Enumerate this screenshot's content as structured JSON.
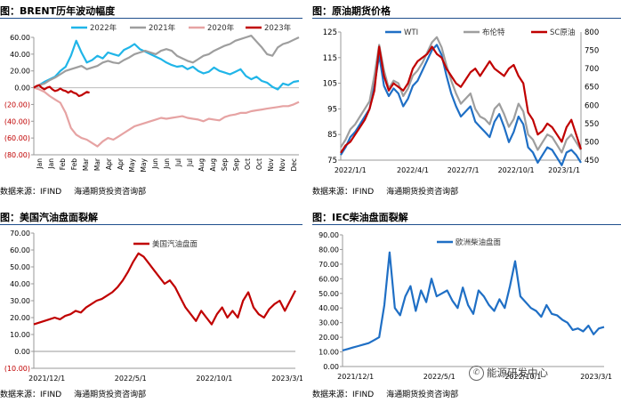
{
  "source_text": "数据来源：IFIND",
  "source_org": "海通期货投资咨询部",
  "watermark": {
    "text": "能源研发中心",
    "icon": "wechat-icon"
  },
  "chart_data": [
    {
      "id": "c1",
      "type": "line",
      "title": "图：BRENT历年波动幅度",
      "categories": [
        "Jan",
        "Jan",
        "Feb",
        "Feb",
        "Mar",
        "Mar",
        "Apr",
        "Apr",
        "May",
        "May",
        "Jun",
        "Jun",
        "Jul",
        "Jul",
        "Aug",
        "Aug",
        "Sep",
        "Sep",
        "Oct",
        "Oct",
        "Nov",
        "Nov",
        "Dec"
      ],
      "ylim": [
        -80,
        60
      ],
      "yticks": [
        -80,
        -60,
        -40,
        -20,
        0,
        20,
        40,
        60
      ],
      "ytick_labels": [
        "(80.00)",
        "(60.00)",
        "(40.00)",
        "(20.00)",
        "0.00",
        "20.00",
        "40.00",
        "60.00"
      ],
      "negative_color": "#c00000",
      "xlabel": "",
      "ylabel": "",
      "legend": "top",
      "series": [
        {
          "name": "2022年",
          "color": "#20b5e8",
          "x": [
            0,
            2,
            4,
            6,
            8,
            10,
            12,
            14,
            16,
            18,
            20,
            22,
            24,
            26,
            28,
            30,
            32,
            34,
            36,
            38,
            40,
            42,
            44,
            46,
            48,
            50,
            52,
            54,
            56,
            58,
            60,
            62,
            64,
            66,
            68,
            70,
            72,
            74,
            76,
            78,
            80,
            82,
            84,
            86,
            88,
            90,
            92,
            94,
            96,
            98,
            100
          ],
          "values": [
            0,
            3,
            7,
            10,
            13,
            20,
            25,
            38,
            56,
            42,
            30,
            33,
            38,
            35,
            42,
            40,
            38,
            45,
            48,
            52,
            46,
            43,
            40,
            37,
            34,
            30,
            27,
            25,
            26,
            22,
            25,
            20,
            17,
            19,
            24,
            20,
            18,
            16,
            19,
            22,
            14,
            10,
            13,
            8,
            6,
            1,
            -2,
            5,
            3,
            7,
            8
          ]
        },
        {
          "name": "2021年",
          "color": "#9e9e9e",
          "x": [
            0,
            2,
            4,
            6,
            8,
            10,
            12,
            14,
            16,
            18,
            20,
            22,
            24,
            26,
            28,
            30,
            32,
            34,
            36,
            38,
            40,
            42,
            44,
            46,
            48,
            50,
            52,
            54,
            56,
            58,
            60,
            62,
            64,
            66,
            68,
            70,
            72,
            74,
            76,
            78,
            80,
            82,
            84,
            86,
            88,
            90,
            92,
            94,
            96,
            98,
            100
          ],
          "values": [
            0,
            3,
            5,
            9,
            12,
            16,
            20,
            22,
            24,
            26,
            22,
            24,
            26,
            30,
            32,
            30,
            29,
            33,
            36,
            40,
            42,
            44,
            42,
            40,
            44,
            46,
            44,
            38,
            35,
            32,
            30,
            34,
            38,
            40,
            44,
            47,
            50,
            52,
            56,
            58,
            60,
            62,
            55,
            48,
            40,
            38,
            48,
            52,
            54,
            57,
            60
          ]
        },
        {
          "name": "2020年",
          "color": "#e6a3a3",
          "x": [
            0,
            2,
            4,
            6,
            8,
            10,
            12,
            14,
            16,
            18,
            20,
            22,
            24,
            26,
            28,
            30,
            32,
            34,
            36,
            38,
            40,
            42,
            44,
            46,
            48,
            50,
            52,
            54,
            56,
            58,
            60,
            62,
            64,
            66,
            68,
            70,
            72,
            74,
            76,
            78,
            80,
            82,
            84,
            86,
            88,
            90,
            92,
            94,
            96,
            98,
            100
          ],
          "values": [
            0,
            -2,
            -5,
            -10,
            -14,
            -18,
            -30,
            -48,
            -56,
            -60,
            -62,
            -66,
            -70,
            -64,
            -60,
            -62,
            -58,
            -54,
            -50,
            -46,
            -44,
            -42,
            -40,
            -38,
            -36,
            -37,
            -36,
            -35,
            -34,
            -36,
            -37,
            -38,
            -40,
            -37,
            -38,
            -39,
            -35,
            -33,
            -32,
            -30,
            -30,
            -28,
            -27,
            -26,
            -25,
            -24,
            -23,
            -22,
            -22,
            -20,
            -17
          ]
        },
        {
          "name": "2023年",
          "color": "#c00000",
          "x": [
            0,
            1,
            2,
            3,
            4,
            5,
            6,
            7,
            8,
            9,
            10,
            11,
            12,
            13,
            14,
            15,
            16,
            17,
            18,
            19,
            20,
            21
          ],
          "values": [
            0,
            2,
            3,
            0,
            -2,
            0,
            1,
            -2,
            -4,
            -3,
            -1,
            -3,
            -4,
            -6,
            -4,
            -6,
            -7,
            -10,
            -9,
            -7,
            -5,
            -6
          ]
        }
      ]
    },
    {
      "id": "c2",
      "type": "line",
      "title": "图：原油期货价格",
      "categories": [
        "2022/1/1",
        "2022/4/1",
        "2022/7/1",
        "2022/10/1",
        "2023/1/1"
      ],
      "ylim": [
        75,
        125
      ],
      "yticks": [
        75,
        85,
        95,
        105,
        115,
        125
      ],
      "ylim_right": [
        450,
        800
      ],
      "yticks_right": [
        450,
        500,
        550,
        600,
        650,
        700,
        750,
        800
      ],
      "xlabel": "",
      "ylabel": "",
      "legend": "top",
      "series": [
        {
          "name": "WTI",
          "color": "#1f6fc5",
          "axis": "left",
          "x": [
            0,
            2,
            4,
            6,
            8,
            10,
            12,
            14,
            16,
            18,
            20,
            22,
            24,
            26,
            28,
            30,
            32,
            34,
            36,
            38,
            40,
            42,
            44,
            46,
            48,
            50,
            52,
            54,
            56,
            58,
            60,
            62,
            64,
            66,
            68,
            70,
            72,
            74,
            76,
            78,
            80,
            82,
            84,
            86,
            88,
            90,
            92,
            94,
            96,
            98,
            100
          ],
          "values": [
            77,
            80,
            84,
            86,
            89,
            92,
            95,
            104,
            116,
            104,
            100,
            103,
            101,
            96,
            99,
            104,
            106,
            110,
            114,
            118,
            120,
            116,
            108,
            101,
            96,
            92,
            94,
            96,
            90,
            88,
            86,
            84,
            90,
            93,
            88,
            82,
            86,
            92,
            89,
            80,
            78,
            74,
            77,
            80,
            79,
            76,
            73,
            78,
            79,
            77,
            74
          ]
        },
        {
          "name": "布伦特",
          "color": "#9e9e9e",
          "axis": "left",
          "x": [
            0,
            2,
            4,
            6,
            8,
            10,
            12,
            14,
            16,
            18,
            20,
            22,
            24,
            26,
            28,
            30,
            32,
            34,
            36,
            38,
            40,
            42,
            44,
            46,
            48,
            50,
            52,
            54,
            56,
            58,
            60,
            62,
            64,
            66,
            68,
            70,
            72,
            74,
            76,
            78,
            80,
            82,
            84,
            86,
            88,
            90,
            92,
            94,
            96,
            98,
            100
          ],
          "values": [
            80,
            83,
            87,
            89,
            92,
            95,
            98,
            108,
            120,
            110,
            103,
            106,
            105,
            100,
            103,
            108,
            110,
            113,
            117,
            121,
            123,
            119,
            112,
            106,
            101,
            97,
            99,
            101,
            95,
            92,
            91,
            89,
            95,
            97,
            93,
            88,
            91,
            97,
            94,
            85,
            83,
            79,
            82,
            85,
            84,
            81,
            78,
            83,
            85,
            82,
            79
          ]
        },
        {
          "name": "SC原油",
          "color": "#c00000",
          "axis": "right",
          "x": [
            0,
            2,
            4,
            6,
            8,
            10,
            12,
            14,
            16,
            18,
            20,
            22,
            24,
            26,
            28,
            30,
            32,
            34,
            36,
            38,
            40,
            42,
            44,
            46,
            48,
            50,
            52,
            54,
            56,
            58,
            60,
            62,
            64,
            66,
            68,
            70,
            72,
            74,
            76,
            78,
            80,
            82,
            84,
            86,
            88,
            90,
            92,
            94,
            96,
            98,
            100
          ],
          "values": [
            470,
            490,
            500,
            520,
            540,
            560,
            590,
            640,
            760,
            680,
            640,
            660,
            650,
            640,
            660,
            700,
            720,
            730,
            740,
            760,
            740,
            730,
            700,
            680,
            660,
            650,
            670,
            690,
            700,
            680,
            700,
            720,
            700,
            690,
            680,
            700,
            710,
            680,
            660,
            580,
            560,
            520,
            530,
            550,
            540,
            520,
            500,
            540,
            560,
            520,
            480
          ]
        }
      ]
    },
    {
      "id": "c3",
      "type": "line",
      "title": "图：美国汽油盘面裂解",
      "categories": [
        "2021/12/1",
        "2022/5/1",
        "2022/10/1",
        "2023/3/1"
      ],
      "ylim": [
        -10,
        70
      ],
      "yticks": [
        -10,
        0,
        10,
        20,
        30,
        40,
        50,
        60,
        70
      ],
      "ytick_labels": [
        "(10.00)",
        "0.00",
        "10.00",
        "20.00",
        "30.00",
        "40.00",
        "50.00",
        "60.00",
        "70.00"
      ],
      "negative_color": "#c00000",
      "xlabel": "",
      "ylabel": "",
      "legend": "top",
      "series": [
        {
          "name": "美国汽油盘面",
          "color": "#c00000",
          "x": [
            0,
            2,
            4,
            6,
            8,
            10,
            12,
            14,
            16,
            18,
            20,
            22,
            24,
            26,
            28,
            30,
            32,
            34,
            36,
            38,
            40,
            42,
            44,
            46,
            48,
            50,
            52,
            54,
            56,
            58,
            60,
            62,
            64,
            66,
            68,
            70,
            72,
            74,
            76,
            78,
            80,
            82,
            84,
            86,
            88,
            90,
            92,
            94,
            96,
            98,
            100
          ],
          "values": [
            16,
            17,
            18,
            19,
            20,
            19,
            21,
            22,
            24,
            23,
            26,
            28,
            30,
            31,
            33,
            35,
            38,
            42,
            47,
            53,
            58,
            56,
            52,
            48,
            44,
            40,
            42,
            38,
            32,
            26,
            22,
            18,
            24,
            20,
            16,
            22,
            26,
            20,
            24,
            20,
            30,
            35,
            26,
            22,
            20,
            25,
            28,
            30,
            24,
            30,
            36
          ]
        }
      ]
    },
    {
      "id": "c4",
      "type": "line",
      "title": "图：IEC柴油盘面裂解",
      "categories": [
        "2021/12/1",
        "2022/5/1",
        "2022/10/1",
        "2023/3/1"
      ],
      "ylim": [
        0,
        90
      ],
      "yticks": [
        0,
        10,
        20,
        30,
        40,
        50,
        60,
        70,
        80,
        90
      ],
      "ytick_labels": [
        "0.00",
        "10.00",
        "20.00",
        "30.00",
        "40.00",
        "50.00",
        "60.00",
        "70.00",
        "80.00",
        "90.00"
      ],
      "xlabel": "",
      "ylabel": "",
      "legend": "top",
      "series": [
        {
          "name": "欧洲柴油盘面",
          "color": "#1f6fc5",
          "x": [
            0,
            2,
            4,
            6,
            8,
            10,
            12,
            14,
            16,
            18,
            20,
            22,
            24,
            26,
            28,
            30,
            32,
            34,
            36,
            38,
            40,
            42,
            44,
            46,
            48,
            50,
            52,
            54,
            56,
            58,
            60,
            62,
            64,
            66,
            68,
            70,
            72,
            74,
            76,
            78,
            80,
            82,
            84,
            86,
            88,
            90,
            92,
            94,
            96,
            98,
            100
          ],
          "values": [
            11,
            12,
            13,
            14,
            15,
            16,
            18,
            20,
            42,
            78,
            40,
            35,
            48,
            55,
            38,
            52,
            44,
            60,
            48,
            50,
            52,
            45,
            40,
            54,
            42,
            36,
            52,
            48,
            42,
            38,
            46,
            40,
            55,
            72,
            48,
            44,
            40,
            38,
            34,
            42,
            36,
            35,
            32,
            30,
            25,
            26,
            24,
            28,
            22,
            26,
            27
          ]
        }
      ]
    }
  ]
}
